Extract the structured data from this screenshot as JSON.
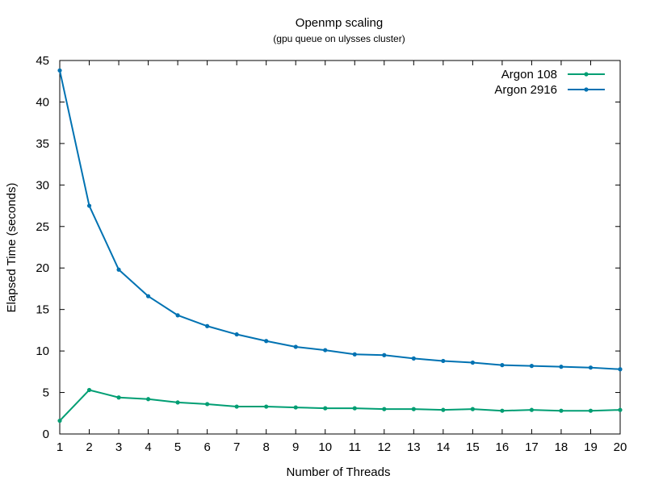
{
  "chart_data": {
    "type": "line",
    "title": "Openmp scaling",
    "subtitle": "(gpu queue on ulysses cluster)",
    "xlabel": "Number of Threads",
    "ylabel": "Elapsed Time (seconds)",
    "xlim": [
      1,
      20
    ],
    "ylim": [
      0,
      45
    ],
    "xticks": [
      1,
      2,
      3,
      4,
      5,
      6,
      7,
      8,
      9,
      10,
      11,
      12,
      13,
      14,
      15,
      16,
      17,
      18,
      19,
      20
    ],
    "yticks": [
      0,
      5,
      10,
      15,
      20,
      25,
      30,
      35,
      40,
      45
    ],
    "grid": false,
    "legend_position": "top-right",
    "x": [
      1,
      2,
      3,
      4,
      5,
      6,
      7,
      8,
      9,
      10,
      11,
      12,
      13,
      14,
      15,
      16,
      17,
      18,
      19,
      20
    ],
    "series": [
      {
        "name": "Argon 108",
        "color": "#009e73",
        "values": [
          1.6,
          5.3,
          4.4,
          4.2,
          3.8,
          3.6,
          3.3,
          3.3,
          3.2,
          3.1,
          3.1,
          3.0,
          3.0,
          2.9,
          3.0,
          2.8,
          2.9,
          2.8,
          2.8,
          2.9
        ]
      },
      {
        "name": "Argon 2916",
        "color": "#0072b2",
        "values": [
          43.8,
          27.5,
          19.8,
          16.6,
          14.3,
          13.0,
          12.0,
          11.2,
          10.5,
          10.1,
          9.6,
          9.5,
          9.1,
          8.8,
          8.6,
          8.3,
          8.2,
          8.1,
          8.0,
          7.8
        ]
      }
    ]
  }
}
